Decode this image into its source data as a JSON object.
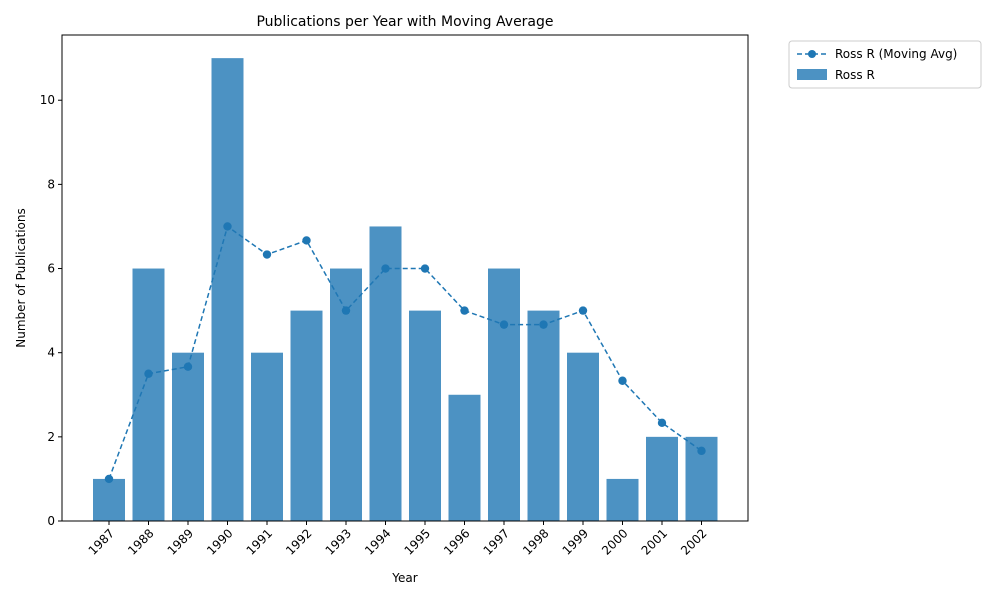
{
  "chart_data": {
    "type": "bar",
    "title": "Publications per Year with Moving Average",
    "xlabel": "Year",
    "ylabel": "Number of Publications",
    "ylim": [
      0,
      11.55
    ],
    "yticks": [
      0,
      2,
      4,
      6,
      8,
      10
    ],
    "grid": false,
    "legend_position": "outside-top-right",
    "categories": [
      "1987",
      "1988",
      "1989",
      "1990",
      "1991",
      "1992",
      "1993",
      "1994",
      "1995",
      "1996",
      "1997",
      "1998",
      "1999",
      "2000",
      "2001",
      "2002"
    ],
    "series": [
      {
        "name": "Ross R",
        "type": "bar",
        "color": "#4c92c3",
        "values": [
          1,
          6,
          4,
          11,
          4,
          5,
          6,
          7,
          5,
          3,
          6,
          5,
          4,
          1,
          2,
          2
        ]
      },
      {
        "name": "Ross R (Moving Avg)",
        "type": "line",
        "style": "dashed",
        "marker": "circle",
        "color": "#1f77b4",
        "values": [
          1.0,
          3.5,
          3.667,
          7.0,
          6.333,
          6.667,
          5.0,
          6.0,
          6.0,
          5.0,
          4.667,
          4.667,
          5.0,
          3.333,
          2.333,
          1.667
        ]
      }
    ]
  }
}
